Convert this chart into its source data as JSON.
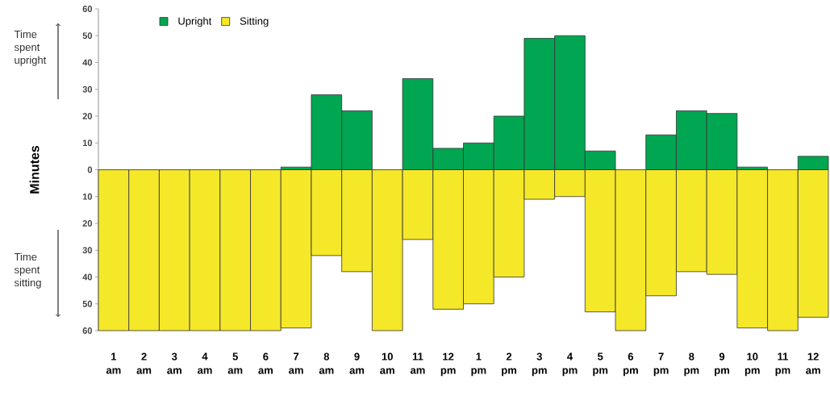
{
  "chart_data": {
    "type": "bar",
    "ylabel": "Minutes",
    "categories": [
      "1 am",
      "2 am",
      "3 am",
      "4 am",
      "5 am",
      "6 am",
      "7 am",
      "8 am",
      "9 am",
      "10 am",
      "11 am",
      "12 pm",
      "1 pm",
      "2 pm",
      "3 pm",
      "4 pm",
      "5 pm",
      "6 pm",
      "7 pm",
      "8 pm",
      "9 pm",
      "10 pm",
      "11 pm",
      "12 am"
    ],
    "series": [
      {
        "name": "Upright",
        "color": "#00a651",
        "values": [
          0,
          0,
          0,
          0,
          0,
          0,
          1,
          28,
          22,
          0,
          34,
          8,
          10,
          20,
          49,
          50,
          7,
          0,
          13,
          22,
          21,
          1,
          0,
          5
        ]
      },
      {
        "name": "Sitting",
        "color": "#f5e829",
        "values": [
          -60,
          -60,
          -60,
          -60,
          -60,
          -60,
          -59,
          -32,
          -38,
          -60,
          -26,
          -52,
          -50,
          -40,
          -11,
          -10,
          -53,
          -60,
          -47,
          -38,
          -39,
          -59,
          -60,
          -55
        ]
      }
    ],
    "ylim": [
      -60,
      60
    ],
    "yticks": [
      {
        "value": -60,
        "label": "60"
      },
      {
        "value": -50,
        "label": "50"
      },
      {
        "value": -40,
        "label": "40"
      },
      {
        "value": -30,
        "label": "30"
      },
      {
        "value": -20,
        "label": "20"
      },
      {
        "value": -10,
        "label": "10"
      },
      0,
      10,
      20,
      30,
      40,
      50,
      60
    ],
    "legend": "top left",
    "stacked": true,
    "annotations": [
      "Time spent upright",
      "Time spent sitting"
    ]
  }
}
